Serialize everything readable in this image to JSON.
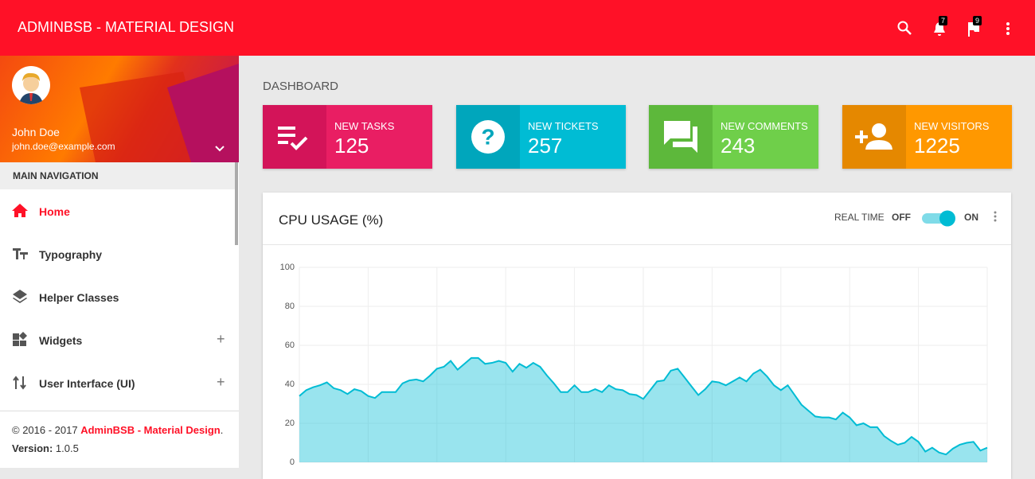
{
  "header": {
    "brand": "ADMINBSB - MATERIAL DESIGN",
    "notifications": 7,
    "flags": 9
  },
  "user": {
    "name": "John Doe",
    "email": "john.doe@example.com"
  },
  "nav": {
    "heading": "MAIN NAVIGATION",
    "items": [
      "Home",
      "Typography",
      "Helper Classes",
      "Widgets",
      "User Interface (UI)"
    ]
  },
  "footer": {
    "copyright": "© 2016 - 2017",
    "brand": "AdminBSB - Material Design",
    "version_label": "Version:",
    "version": "1.0.5"
  },
  "page_title": "DASHBOARD",
  "info_boxes": [
    {
      "label": "NEW TASKS",
      "value": 125
    },
    {
      "label": "NEW TICKETS",
      "value": 257
    },
    {
      "label": "NEW COMMENTS",
      "value": 243
    },
    {
      "label": "NEW VISITORS",
      "value": 1225
    }
  ],
  "realtime": {
    "label": "REAL TIME",
    "off": "OFF",
    "on": "ON"
  },
  "chart_data": {
    "type": "area",
    "title": "CPU USAGE (%)",
    "color": "#00bcd4",
    "values": [
      34,
      37,
      38.5,
      39.5,
      41,
      38,
      37,
      35,
      37.5,
      36.5,
      34,
      33,
      36,
      36,
      36,
      40.5,
      42,
      42.5,
      41.5,
      44.5,
      48,
      49,
      52,
      47.5,
      50.5,
      53.5,
      53.5,
      50.5,
      51,
      52,
      51,
      46.5,
      50.5,
      48.5,
      51,
      49,
      44.5,
      40.5,
      36,
      36,
      39.5,
      36,
      36,
      37.5,
      36,
      39.5,
      37.5,
      37,
      35,
      34.5,
      32.5,
      37,
      41.5,
      42,
      47,
      48,
      43.5,
      39,
      34.5,
      37.5,
      41.5,
      41,
      39.5,
      41.5,
      43.5,
      41.5,
      45.5,
      47.5,
      44,
      39.5,
      37,
      39.5,
      34.5,
      29.5,
      26.5,
      23.5,
      23,
      23,
      22,
      25.5,
      23,
      19,
      20,
      18,
      18,
      13.5,
      11,
      9,
      10,
      13,
      10.5,
      5.5,
      7.5,
      5,
      4,
      7,
      9,
      10,
      10.5,
      6,
      7.5
    ],
    "ylim": [
      0,
      100
    ],
    "yticks": [
      0,
      20,
      40,
      60,
      80,
      100
    ],
    "grid": true
  }
}
